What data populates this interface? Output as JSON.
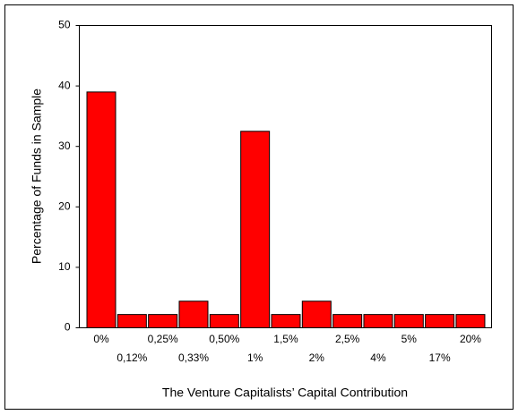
{
  "chart_data": {
    "type": "bar",
    "x_label": "The Venture Capitalists’ Capital Contribution",
    "y_label": "Percentage of Funds in Sample",
    "categories": [
      "0%",
      "0,12%",
      "0,25%",
      "0,33%",
      "0,50%",
      "1%",
      "1,5%",
      "2%",
      "2,5%",
      "4%",
      "5%",
      "17%",
      "20%"
    ],
    "values": [
      39,
      2.2,
      2.2,
      4.4,
      2.2,
      32.5,
      2.2,
      4.4,
      2.2,
      2.2,
      2.2,
      2.2,
      2.2
    ],
    "color": "#ff0000",
    "ylim": [
      0,
      50
    ],
    "yticks": [
      0,
      10,
      20,
      30,
      40,
      50
    ],
    "grid": false
  }
}
